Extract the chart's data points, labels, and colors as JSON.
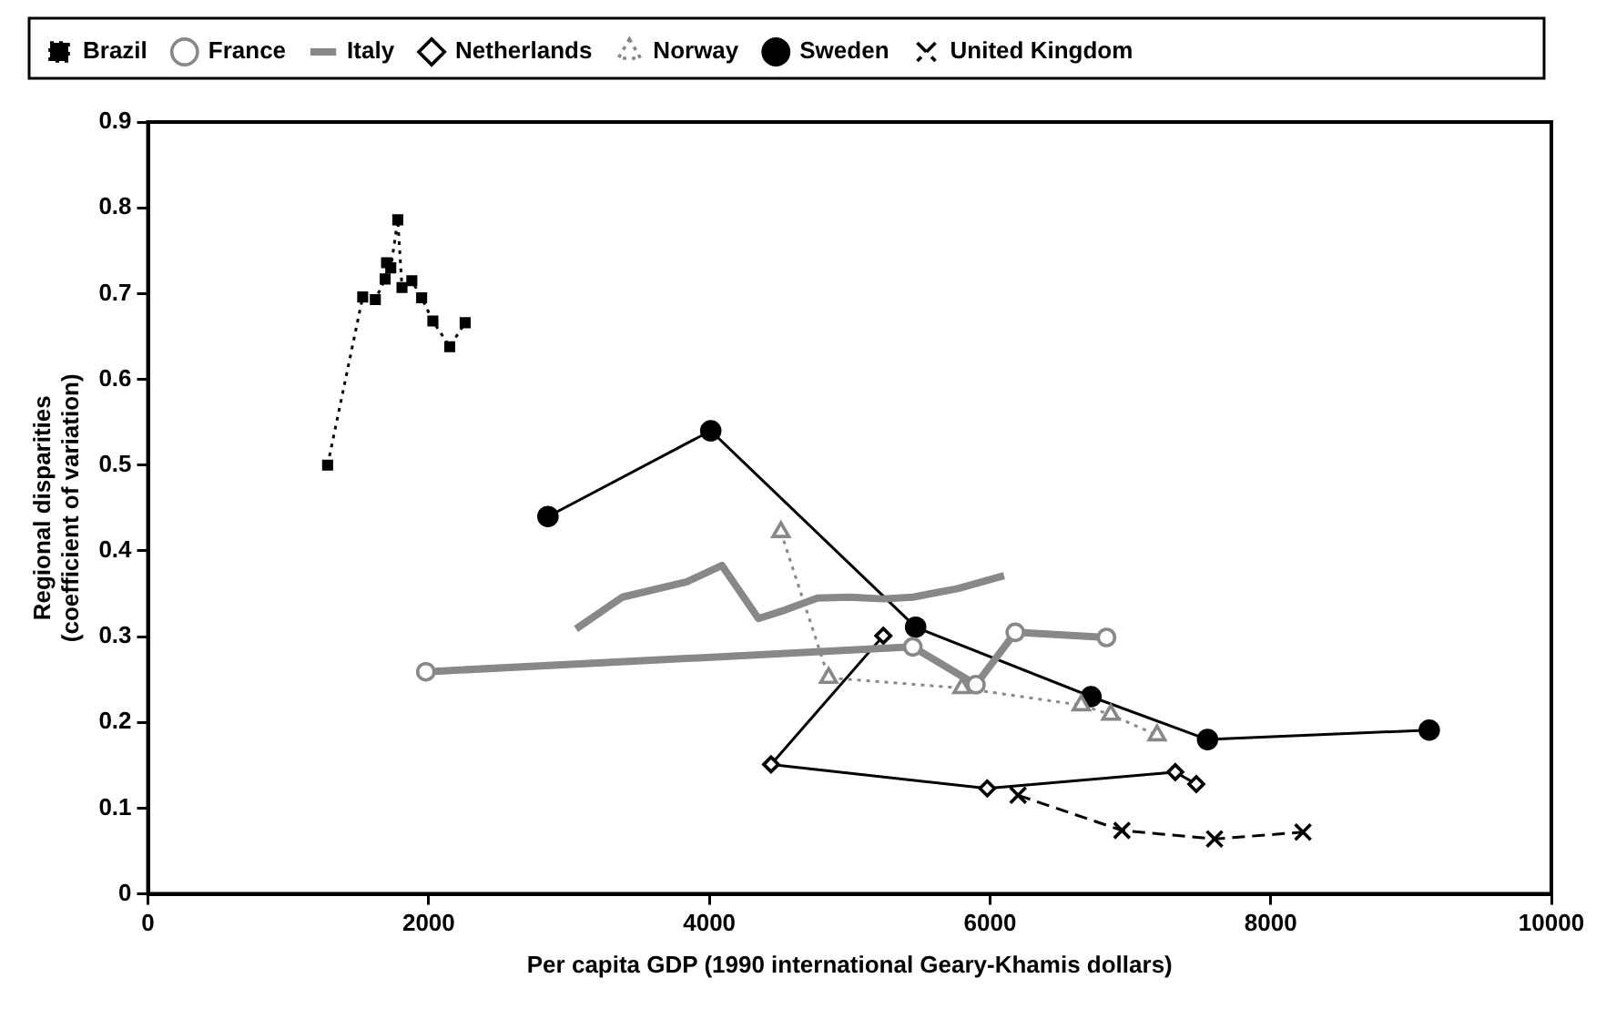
{
  "chart_data": {
    "type": "line",
    "xlabel": "Per capita GDP (1990 international Geary-Khamis dollars)",
    "ylabel": "Regional disparities\n(coefficient of variation)",
    "xlim": [
      0,
      10000
    ],
    "xticks": [
      0,
      2000,
      4000,
      6000,
      8000,
      10000
    ],
    "ylim": [
      0,
      0.9
    ],
    "yticks": [
      0,
      0.1,
      0.2,
      0.3,
      0.4,
      0.5,
      0.6,
      0.7,
      0.8,
      0.9
    ],
    "grid": false,
    "legend": "top",
    "series": [
      {
        "name": "Brazil",
        "color": "#000000",
        "marker": "square",
        "line_style": "dotted",
        "x": [
          1280,
          1530,
          1620,
          1690,
          1700,
          1730,
          1780,
          1810,
          1880,
          1950,
          2030,
          2150,
          2260
        ],
        "values": [
          0.5,
          0.696,
          0.693,
          0.717,
          0.736,
          0.73,
          0.786,
          0.707,
          0.715,
          0.695,
          0.668,
          0.638,
          0.666
        ]
      },
      {
        "name": "France",
        "color": "#888888",
        "marker": "circle",
        "line_style": "solid",
        "x": [
          1980,
          5450,
          5900,
          6180,
          6830
        ],
        "values": [
          0.259,
          0.288,
          0.244,
          0.305,
          0.299
        ]
      },
      {
        "name": "Italy",
        "color": "#888888",
        "marker": "none",
        "line_style": "solid",
        "x": [
          3050,
          3380,
          3840,
          4090,
          4350,
          4540,
          4770,
          5000,
          5240,
          5450,
          5770,
          6100
        ],
        "values": [
          0.309,
          0.346,
          0.364,
          0.383,
          0.321,
          0.331,
          0.345,
          0.346,
          0.344,
          0.346,
          0.356,
          0.371
        ]
      },
      {
        "name": "Netherlands",
        "color": "#000000",
        "marker": "diamond",
        "line_style": "solid",
        "x": [
          5240,
          4440,
          5980,
          7320,
          7470
        ],
        "values": [
          0.301,
          0.151,
          0.123,
          0.142,
          0.128
        ]
      },
      {
        "name": "Norway",
        "color": "#888888",
        "marker": "triangle",
        "line_style": "dotted",
        "x": [
          4510,
          4850,
          5800,
          6650,
          6860,
          7190
        ],
        "values": [
          0.422,
          0.252,
          0.24,
          0.22,
          0.209,
          0.185
        ]
      },
      {
        "name": "Sweden",
        "color": "#000000",
        "marker": "filled circle",
        "line_style": "solid",
        "x": [
          2850,
          4010,
          5470,
          6720,
          7550,
          9130
        ],
        "values": [
          0.44,
          0.54,
          0.311,
          0.23,
          0.18,
          0.191
        ]
      },
      {
        "name": "United Kingdom",
        "color": "#000000",
        "marker": "cross",
        "line_style": "dashed",
        "x": [
          6200,
          6940,
          7600,
          8230
        ],
        "values": [
          0.115,
          0.074,
          0.064,
          0.072
        ]
      }
    ]
  }
}
